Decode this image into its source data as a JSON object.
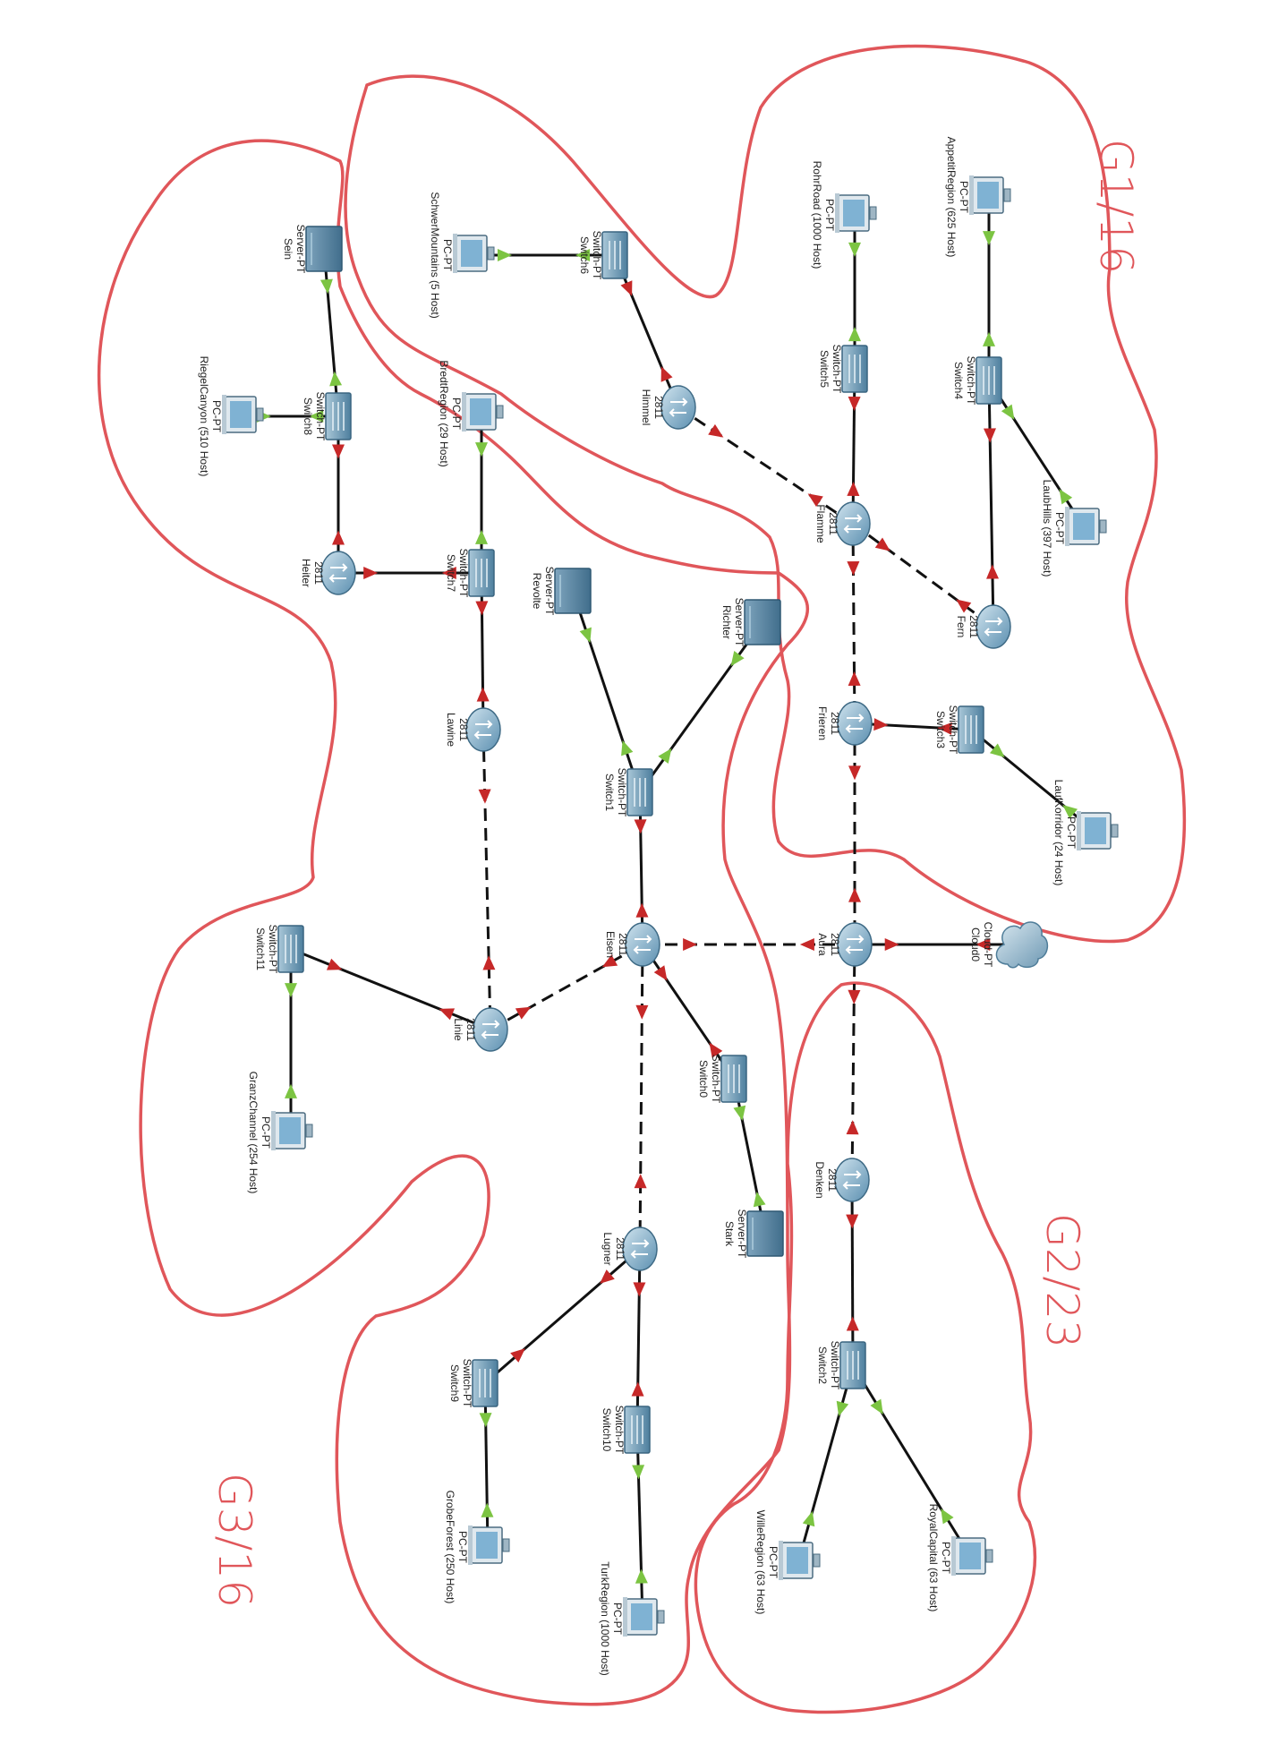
{
  "annotations": {
    "g1": "G1/16",
    "g2": "G2/23",
    "g3": "G3/16"
  },
  "colors": {
    "annotation": "#e0565a",
    "link_down": "#c62828",
    "link_up": "#7cc442",
    "device": "#5b8fb0"
  },
  "nodes": {
    "appetit_pc": {
      "icon": "pc-icon",
      "type": "PC-PT",
      "name": "AppetitRegion (625 Host)"
    },
    "rohr_pc": {
      "icon": "pc-icon",
      "type": "PC-PT",
      "name": "RohrRoad (1000 Host)"
    },
    "schwer_pc": {
      "icon": "pc-icon",
      "type": "PC-PT",
      "name": "SchwerMountains (5 Host)"
    },
    "sein_srv": {
      "icon": "server-icon",
      "type": "Server-PT",
      "name": "Sein"
    },
    "switch6": {
      "icon": "switch-icon",
      "type": "Switch-PT",
      "name": "Switch6"
    },
    "switch5": {
      "icon": "switch-icon",
      "type": "Switch-PT",
      "name": "Switch5"
    },
    "switch4": {
      "icon": "switch-icon",
      "type": "Switch-PT",
      "name": "Switch4"
    },
    "switch8": {
      "icon": "switch-icon",
      "type": "Switch-PT",
      "name": "Switch8"
    },
    "riegel_pc": {
      "icon": "pc-icon",
      "type": "PC-PT",
      "name": "RiegelCanyon (510 Host)"
    },
    "bredt_pc": {
      "icon": "pc-icon",
      "type": "PC-PT",
      "name": "BredtRegion (29 Host)"
    },
    "himmel": {
      "icon": "router-icon",
      "type": "2811",
      "name": "Himmel"
    },
    "laub_pc": {
      "icon": "pc-icon",
      "type": "PC-PT",
      "name": "LaubHills (397 Host)"
    },
    "flamme": {
      "icon": "router-icon",
      "type": "2811",
      "name": "Flamme"
    },
    "heiter": {
      "icon": "router-icon",
      "type": "2811",
      "name": "Heiter"
    },
    "switch7": {
      "icon": "switch-icon",
      "type": "Switch-PT",
      "name": "Switch7"
    },
    "revolte_srv": {
      "icon": "server-icon",
      "type": "Server-PT",
      "name": "Revolte"
    },
    "fern": {
      "icon": "router-icon",
      "type": "2811",
      "name": "Fern"
    },
    "richter_srv": {
      "icon": "server-icon",
      "type": "Server-PT",
      "name": "Richter"
    },
    "lawine": {
      "icon": "router-icon",
      "type": "2811",
      "name": "Lawine"
    },
    "frieren": {
      "icon": "router-icon",
      "type": "2811",
      "name": "Frieren"
    },
    "switch3": {
      "icon": "switch-icon",
      "type": "Switch-PT",
      "name": "Switch3"
    },
    "switch1": {
      "icon": "switch-icon",
      "type": "Switch-PT",
      "name": "Switch1"
    },
    "lauf_pc": {
      "icon": "pc-icon",
      "type": "PC-PT",
      "name": "LaufKorridor (24 Host)"
    },
    "switch11": {
      "icon": "switch-icon",
      "type": "Switch-PT",
      "name": "Switch11"
    },
    "eisen": {
      "icon": "router-icon",
      "type": "2811",
      "name": "Eisen"
    },
    "aura": {
      "icon": "router-icon",
      "type": "2811",
      "name": "Aura"
    },
    "cloud0": {
      "icon": "cloud-icon",
      "type": "Cloud-PT",
      "name": "Cloud0"
    },
    "linie": {
      "icon": "router-icon",
      "type": "2811",
      "name": "Linie"
    },
    "switch0": {
      "icon": "switch-icon",
      "type": "Switch-PT",
      "name": "Switch0"
    },
    "granz_pc": {
      "icon": "pc-icon",
      "type": "PC-PT",
      "name": "GranzChannel (254 Host)"
    },
    "denken": {
      "icon": "router-icon",
      "type": "2811",
      "name": "Denken"
    },
    "stark_srv": {
      "icon": "server-icon",
      "type": "Server-PT",
      "name": "Stark"
    },
    "lugner": {
      "icon": "router-icon",
      "type": "2811",
      "name": "Lugner"
    },
    "switch2": {
      "icon": "switch-icon",
      "type": "Switch-PT",
      "name": "Switch2"
    },
    "switch9": {
      "icon": "switch-icon",
      "type": "Switch-PT",
      "name": "Switch9"
    },
    "switch10": {
      "icon": "switch-icon",
      "type": "Switch-PT",
      "name": "Switch10"
    },
    "wille_pc": {
      "icon": "pc-icon",
      "type": "PC-PT",
      "name": "WilleRegion (63 Host)"
    },
    "royal_pc": {
      "icon": "pc-icon",
      "type": "PC-PT",
      "name": "RoyalCapital (63 Host)"
    },
    "grobe_pc": {
      "icon": "pc-icon",
      "type": "PC-PT",
      "name": "GrobeForest (250 Host)"
    },
    "turk_pc": {
      "icon": "pc-icon",
      "type": "PC-PT",
      "name": "TurkRegion (1000 Host)"
    }
  },
  "links": [
    {
      "from": "appetit_pc",
      "to": "switch4",
      "style": "solid",
      "status": "up"
    },
    {
      "from": "switch4",
      "to": "laub_pc",
      "style": "solid",
      "status": "up"
    },
    {
      "from": "switch4",
      "to": "fern",
      "style": "solid",
      "status": "down"
    },
    {
      "from": "rohr_pc",
      "to": "switch5",
      "style": "solid",
      "status": "up"
    },
    {
      "from": "switch5",
      "to": "flamme",
      "style": "solid",
      "status": "down"
    },
    {
      "from": "schwer_pc",
      "to": "switch6",
      "style": "solid",
      "status": "up"
    },
    {
      "from": "switch6",
      "to": "himmel",
      "style": "solid",
      "status": "down"
    },
    {
      "from": "himmel",
      "to": "flamme",
      "style": "dashed",
      "status": "down"
    },
    {
      "from": "flamme",
      "to": "fern",
      "style": "dashed",
      "status": "down"
    },
    {
      "from": "flamme",
      "to": "frieren",
      "style": "dashed",
      "status": "down"
    },
    {
      "from": "frieren",
      "to": "switch3",
      "style": "solid",
      "status": "down"
    },
    {
      "from": "switch3",
      "to": "lauf_pc",
      "style": "solid",
      "status": "up"
    },
    {
      "from": "frieren",
      "to": "aura",
      "style": "dashed",
      "status": "down"
    },
    {
      "from": "cloud0",
      "to": "aura",
      "style": "solid",
      "status": "down"
    },
    {
      "from": "aura",
      "to": "eisen",
      "style": "dashed",
      "status": "down"
    },
    {
      "from": "aura",
      "to": "denken",
      "style": "dashed",
      "status": "down"
    },
    {
      "from": "denken",
      "to": "switch2",
      "style": "solid",
      "status": "down"
    },
    {
      "from": "switch2",
      "to": "wille_pc",
      "style": "solid",
      "status": "up"
    },
    {
      "from": "switch2",
      "to": "royal_pc",
      "style": "solid",
      "status": "up"
    },
    {
      "from": "sein_srv",
      "to": "switch8",
      "style": "solid",
      "status": "up"
    },
    {
      "from": "riegel_pc",
      "to": "switch8",
      "style": "solid",
      "status": "up"
    },
    {
      "from": "switch8",
      "to": "heiter",
      "style": "solid",
      "status": "down"
    },
    {
      "from": "heiter",
      "to": "switch7",
      "style": "solid",
      "status": "down"
    },
    {
      "from": "bredt_pc",
      "to": "switch7",
      "style": "solid",
      "status": "up"
    },
    {
      "from": "switch7",
      "to": "lawine",
      "style": "solid",
      "status": "down"
    },
    {
      "from": "lawine",
      "to": "linie",
      "style": "dashed",
      "status": "down"
    },
    {
      "from": "linie",
      "to": "switch11",
      "style": "solid",
      "status": "down"
    },
    {
      "from": "switch11",
      "to": "granz_pc",
      "style": "solid",
      "status": "up"
    },
    {
      "from": "linie",
      "to": "eisen",
      "style": "dashed",
      "status": "down"
    },
    {
      "from": "revolte_srv",
      "to": "switch1",
      "style": "solid",
      "status": "up"
    },
    {
      "from": "richter_srv",
      "to": "switch1",
      "style": "solid",
      "status": "up"
    },
    {
      "from": "switch1",
      "to": "eisen",
      "style": "solid",
      "status": "down"
    },
    {
      "from": "eisen",
      "to": "switch0",
      "style": "solid",
      "status": "down"
    },
    {
      "from": "switch0",
      "to": "stark_srv",
      "style": "solid",
      "status": "up"
    },
    {
      "from": "eisen",
      "to": "lugner",
      "style": "dashed",
      "status": "down"
    },
    {
      "from": "lugner",
      "to": "switch9",
      "style": "solid",
      "status": "down"
    },
    {
      "from": "switch9",
      "to": "grobe_pc",
      "style": "solid",
      "status": "up"
    },
    {
      "from": "lugner",
      "to": "switch10",
      "style": "solid",
      "status": "down"
    },
    {
      "from": "switch10",
      "to": "turk_pc",
      "style": "solid",
      "status": "up"
    }
  ]
}
